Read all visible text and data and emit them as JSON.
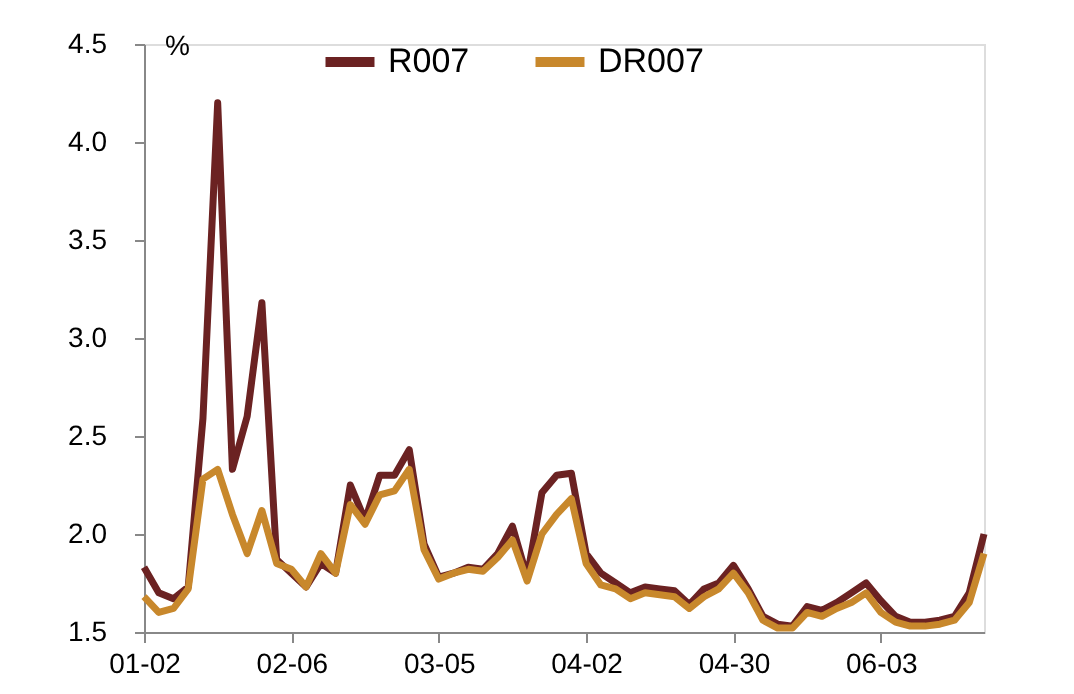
{
  "chart_data": {
    "type": "line",
    "ylabel": "%",
    "legend": "top",
    "grid": false,
    "line_style": "solid",
    "marker": "none",
    "categories": [
      "01-02",
      null,
      null,
      null,
      null,
      null,
      null,
      null,
      null,
      null,
      "02-06",
      null,
      null,
      null,
      null,
      null,
      null,
      null,
      null,
      null,
      "03-05",
      null,
      null,
      null,
      null,
      null,
      null,
      null,
      null,
      null,
      "04-02",
      null,
      null,
      null,
      null,
      null,
      null,
      null,
      null,
      null,
      "04-30",
      null,
      null,
      null,
      null,
      null,
      null,
      null,
      null,
      null,
      "06-03",
      null,
      null,
      null,
      null,
      null,
      null,
      null
    ],
    "ylim": [
      1.5,
      4.5
    ],
    "yticks": [
      1.5,
      {
        "value": 2.0,
        "label": "2.0"
      },
      2.5,
      {
        "value": 3.0,
        "label": "3.0"
      },
      3.5,
      {
        "value": 4.0,
        "label": "4.0"
      },
      4.5
    ],
    "series": [
      {
        "name": "R007",
        "color": "#6b2222",
        "values": [
          1.83,
          1.7,
          1.67,
          1.73,
          2.59,
          4.2,
          2.33,
          2.6,
          3.18,
          1.87,
          1.8,
          1.73,
          1.85,
          1.8,
          2.25,
          2.07,
          2.3,
          2.3,
          2.43,
          1.95,
          1.78,
          1.8,
          1.83,
          1.82,
          1.9,
          2.04,
          1.78,
          2.21,
          2.3,
          2.31,
          1.9,
          1.8,
          1.75,
          1.7,
          1.73,
          1.72,
          1.71,
          1.64,
          1.72,
          1.75,
          1.84,
          1.72,
          1.58,
          1.54,
          1.53,
          1.63,
          1.61,
          1.65,
          1.7,
          1.75,
          1.66,
          1.58,
          1.55,
          1.55,
          1.56,
          1.58,
          1.7,
          2.0
        ]
      },
      {
        "name": "DR007",
        "color": "#c8882c",
        "values": [
          1.68,
          1.6,
          1.62,
          1.72,
          2.28,
          2.33,
          2.1,
          1.9,
          2.12,
          1.85,
          1.82,
          1.73,
          1.9,
          1.8,
          2.15,
          2.05,
          2.2,
          2.22,
          2.33,
          1.92,
          1.77,
          1.8,
          1.82,
          1.81,
          1.88,
          1.97,
          1.76,
          2.0,
          2.1,
          2.18,
          1.85,
          1.74,
          1.72,
          1.67,
          1.7,
          1.69,
          1.68,
          1.62,
          1.68,
          1.72,
          1.8,
          1.7,
          1.56,
          1.52,
          1.52,
          1.6,
          1.58,
          1.62,
          1.65,
          1.7,
          1.6,
          1.55,
          1.53,
          1.53,
          1.54,
          1.56,
          1.65,
          1.9
        ]
      }
    ]
  }
}
